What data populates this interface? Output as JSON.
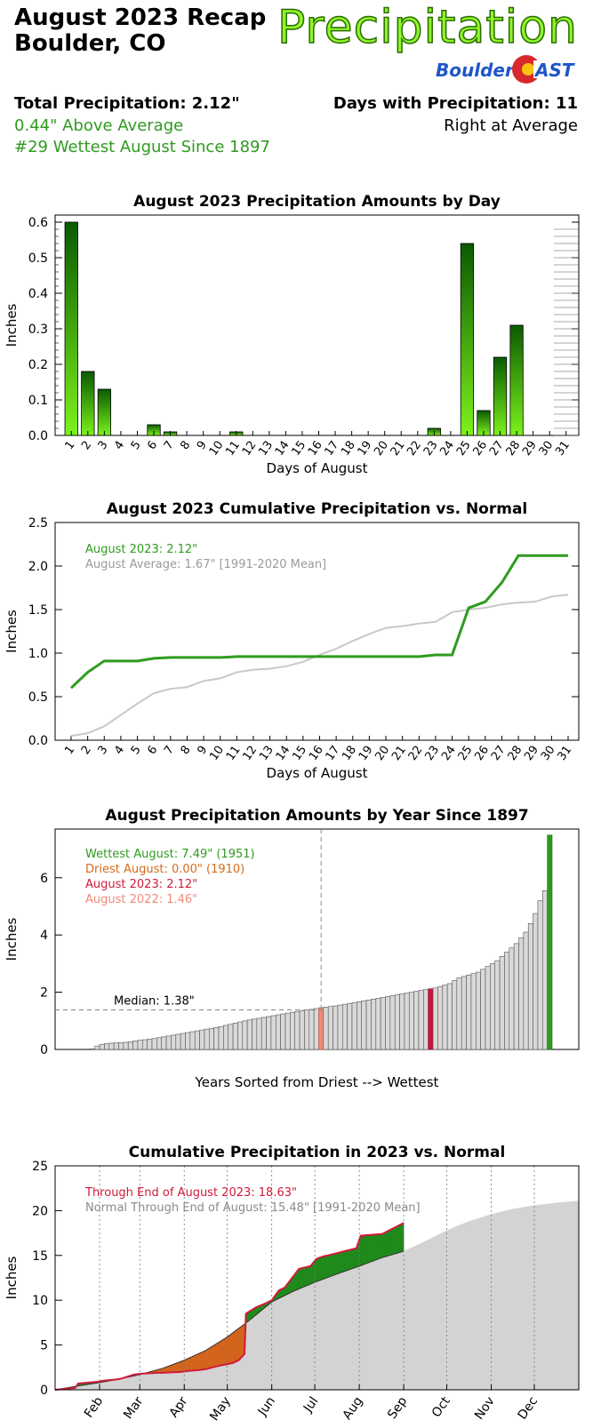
{
  "header": {
    "title_line1": "August 2023 Recap",
    "title_line2": "Boulder, CO",
    "brand": "Precipitation",
    "logo_text_left": "Boulder",
    "logo_text_right": "AST",
    "total_precip": "Total Precipitation: 2.12\"",
    "above_average": "0.44\" Above Average",
    "rank": "#29 Wettest August Since 1897",
    "days_with_precip": "Days with Precipitation: 11",
    "days_vs_avg": "Right at Average"
  },
  "chart_data": [
    {
      "type": "bar",
      "title": "August 2023 Precipitation Amounts by Day",
      "xlabel": "Days of August",
      "ylabel": "Inches",
      "ylim": [
        0,
        0.62
      ],
      "yticks": [
        "0.0",
        "0.1",
        "0.2",
        "0.3",
        "0.4",
        "0.5",
        "0.6"
      ],
      "categories": [
        "1",
        "2",
        "3",
        "4",
        "5",
        "6",
        "7",
        "8",
        "9",
        "10",
        "11",
        "12",
        "13",
        "14",
        "15",
        "16",
        "17",
        "18",
        "19",
        "20",
        "21",
        "22",
        "23",
        "24",
        "25",
        "26",
        "27",
        "28",
        "29",
        "30",
        "31"
      ],
      "values": [
        0.6,
        0.18,
        0.13,
        0,
        0,
        0.03,
        0.01,
        0,
        0,
        0,
        0.01,
        0,
        0,
        0,
        0,
        0,
        0,
        0,
        0,
        0,
        0,
        0,
        0.02,
        0,
        0.54,
        0.07,
        0.22,
        0.31,
        0,
        0,
        0
      ],
      "colors": {
        "bar_top": "#0a5a00",
        "bar_bottom": "#7cf21c"
      }
    },
    {
      "type": "line",
      "title": "August 2023 Cumulative Precipitation vs. Normal",
      "xlabel": "Days of August",
      "ylabel": "Inches",
      "ylim": [
        0,
        2.5
      ],
      "yticks": [
        "0.0",
        "0.5",
        "1.0",
        "1.5",
        "2.0",
        "2.5"
      ],
      "categories": [
        "1",
        "2",
        "3",
        "4",
        "5",
        "6",
        "7",
        "8",
        "9",
        "10",
        "11",
        "12",
        "13",
        "14",
        "15",
        "16",
        "17",
        "18",
        "19",
        "20",
        "21",
        "22",
        "23",
        "24",
        "25",
        "26",
        "27",
        "28",
        "29",
        "30",
        "31"
      ],
      "series": [
        {
          "name": "August 2023: 2.12\"",
          "color": "#2e9b1f",
          "values": [
            0.6,
            0.78,
            0.91,
            0.91,
            0.91,
            0.94,
            0.95,
            0.95,
            0.95,
            0.95,
            0.96,
            0.96,
            0.96,
            0.96,
            0.96,
            0.96,
            0.96,
            0.96,
            0.96,
            0.96,
            0.96,
            0.96,
            0.98,
            0.98,
            1.52,
            1.59,
            1.81,
            2.12,
            2.12,
            2.12,
            2.12
          ]
        },
        {
          "name": "August Average: 1.67\" [1991-2020 Mean]",
          "color": "#c8c8c8",
          "values": [
            0.05,
            0.08,
            0.16,
            0.29,
            0.42,
            0.54,
            0.59,
            0.61,
            0.68,
            0.71,
            0.78,
            0.81,
            0.82,
            0.85,
            0.9,
            0.98,
            1.05,
            1.14,
            1.22,
            1.29,
            1.31,
            1.34,
            1.36,
            1.47,
            1.5,
            1.52,
            1.56,
            1.58,
            1.59,
            1.65,
            1.67
          ]
        }
      ]
    },
    {
      "type": "bar",
      "title": "August Precipitation Amounts by Year Since 1897",
      "xlabel": "Years Sorted from Driest --> Wettest",
      "ylabel": "Inches",
      "ylim": [
        0,
        7.7
      ],
      "yticks": [
        "0",
        "2",
        "4",
        "6"
      ],
      "median_label": "Median: 1.38\"",
      "median": 1.38,
      "annotations": [
        {
          "text": "Wettest August: 7.49\" (1951)",
          "color": "#2e9b1f"
        },
        {
          "text": "Driest August: 0.00\" (1910)",
          "color": "#d86a1a"
        },
        {
          "text": "August 2023: 2.12\"",
          "color": "#d01a3a"
        },
        {
          "text": "August 2022: 1.46\"",
          "color": "#f08a78"
        }
      ],
      "values": [
        0.0,
        0.02,
        0.12,
        0.18,
        0.21,
        0.22,
        0.23,
        0.24,
        0.25,
        0.27,
        0.3,
        0.32,
        0.34,
        0.36,
        0.38,
        0.41,
        0.44,
        0.47,
        0.5,
        0.53,
        0.56,
        0.59,
        0.62,
        0.65,
        0.68,
        0.71,
        0.74,
        0.77,
        0.8,
        0.84,
        0.88,
        0.92,
        0.96,
        1.0,
        1.03,
        1.06,
        1.09,
        1.12,
        1.15,
        1.18,
        1.21,
        1.24,
        1.27,
        1.3,
        1.33,
        1.36,
        1.38,
        1.4,
        1.43,
        1.46,
        1.48,
        1.5,
        1.52,
        1.55,
        1.58,
        1.61,
        1.64,
        1.67,
        1.7,
        1.73,
        1.76,
        1.79,
        1.82,
        1.85,
        1.88,
        1.91,
        1.94,
        1.97,
        2.0,
        2.03,
        2.06,
        2.09,
        2.12,
        2.15,
        2.2,
        2.25,
        2.3,
        2.4,
        2.5,
        2.55,
        2.6,
        2.65,
        2.7,
        2.8,
        2.9,
        3.0,
        3.1,
        3.25,
        3.4,
        3.55,
        3.7,
        3.9,
        4.1,
        4.4,
        4.75,
        5.2,
        5.55,
        7.49
      ],
      "highlight": {
        "wettest_index": 97,
        "driest_index": 0,
        "y2023_index": 72,
        "y2022_index": 49
      }
    },
    {
      "type": "area",
      "title": "Cumulative Precipitation in 2023 vs. Normal",
      "ylabel": "Inches",
      "ylim": [
        0,
        25
      ],
      "yticks": [
        "0",
        "5",
        "10",
        "15",
        "20",
        "25"
      ],
      "months": [
        "Feb",
        "Mar",
        "Apr",
        "May",
        "Jun",
        "Jul",
        "Aug",
        "Sep",
        "Oct",
        "Nov",
        "Dec"
      ],
      "month_days": [
        31,
        59,
        90,
        120,
        151,
        181,
        212,
        243,
        273,
        304,
        334
      ],
      "annotations": [
        {
          "text": "Through End of August 2023: 18.63\"",
          "color": "#d01a3a"
        },
        {
          "text": "Normal Through End of August:  15.48\" [1991-2020 Mean]",
          "color": "#8a8a8a"
        }
      ],
      "normal": {
        "day": [
          0,
          15,
          31,
          45,
          59,
          75,
          90,
          105,
          120,
          135,
          151,
          166,
          181,
          196,
          212,
          227,
          243,
          258,
          273,
          288,
          304,
          319,
          334,
          350,
          365
        ],
        "value": [
          0,
          0.4,
          0.8,
          1.2,
          1.7,
          2.4,
          3.3,
          4.4,
          5.9,
          7.7,
          9.8,
          11.0,
          12.0,
          12.9,
          13.8,
          14.7,
          15.48,
          16.6,
          17.8,
          18.8,
          19.6,
          20.2,
          20.6,
          20.9,
          21.1
        ]
      },
      "y2023": {
        "day": [
          0,
          14,
          16,
          30,
          33,
          45,
          55,
          60,
          72,
          75,
          88,
          92,
          100,
          105,
          112,
          118,
          124,
          128,
          132,
          133,
          140,
          146,
          151,
          156,
          160,
          170,
          178,
          182,
          187,
          190,
          195,
          210,
          213,
          228,
          243
        ],
        "value": [
          0,
          0.2,
          0.7,
          0.9,
          1.0,
          1.2,
          1.7,
          1.8,
          1.9,
          1.9,
          2.0,
          2.1,
          2.2,
          2.3,
          2.6,
          2.8,
          3.0,
          3.3,
          4.0,
          8.5,
          9.2,
          9.6,
          10.0,
          11.1,
          11.4,
          13.5,
          13.8,
          14.6,
          14.9,
          15.0,
          15.2,
          15.8,
          17.2,
          17.4,
          18.63
        ]
      }
    }
  ]
}
